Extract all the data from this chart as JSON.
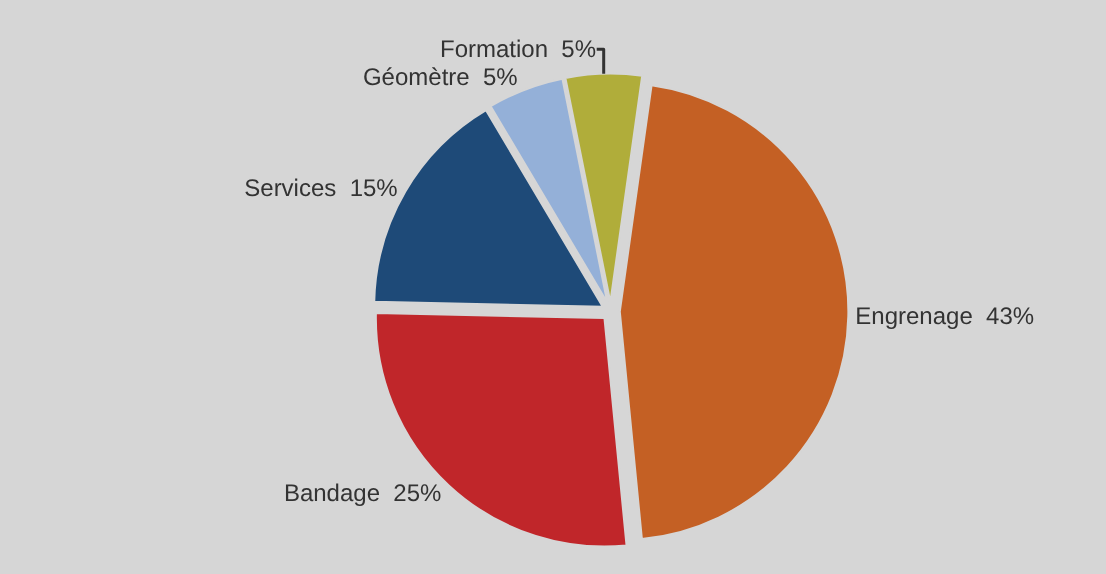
{
  "chart_data": {
    "type": "pie",
    "categories": [
      "Engrenage",
      "Bandage",
      "Services",
      "Géomètre",
      "Formation"
    ],
    "values": [
      43,
      25,
      15,
      5,
      5
    ],
    "value_labels": [
      "43%",
      "25%",
      "15%",
      "5%",
      "5%"
    ],
    "colors": [
      "#c46024",
      "#c0262a",
      "#1e4a78",
      "#94b0d8",
      "#b0ad3a"
    ],
    "legend": false
  }
}
